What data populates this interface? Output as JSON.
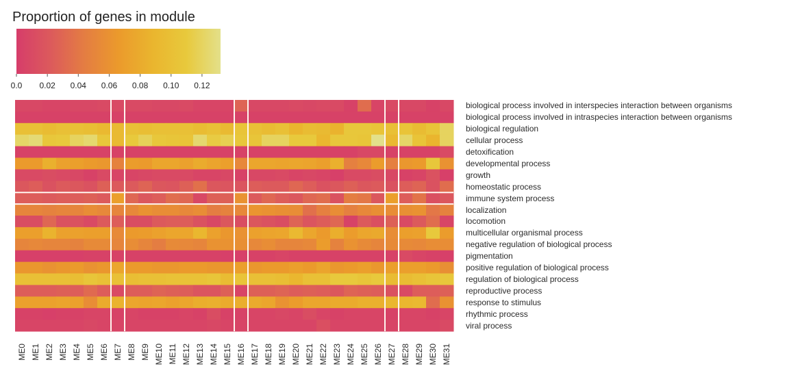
{
  "chart_data": {
    "type": "heatmap",
    "title": "",
    "colorbar": {
      "label": "Proportion of genes in module",
      "range": [
        0.0,
        0.132
      ],
      "ticks": [
        0.0,
        0.02,
        0.04,
        0.06,
        0.08,
        0.1,
        0.12
      ],
      "tick_labels": [
        "0.0",
        "0.02",
        "0.04",
        "0.06",
        "0.08",
        "0.10",
        "0.12"
      ],
      "colors": [
        "#d63d6a",
        "#dc5a5c",
        "#e47d42",
        "#eb9a2c",
        "#eab52e",
        "#e8c93c",
        "#e3e08a"
      ]
    },
    "columns": [
      "ME0",
      "ME1",
      "ME2",
      "ME3",
      "ME4",
      "ME5",
      "ME6",
      "ME7",
      "ME8",
      "ME9",
      "ME10",
      "ME11",
      "ME12",
      "ME13",
      "ME14",
      "ME15",
      "ME16",
      "ME17",
      "ME18",
      "ME19",
      "ME20",
      "ME21",
      "ME22",
      "ME23",
      "ME24",
      "ME25",
      "ME26",
      "ME27",
      "ME28",
      "ME29",
      "ME30",
      "ME31"
    ],
    "rows": [
      "biological process involved in interspecies interaction between organisms",
      "biological process involved in intraspecies interaction between organisms",
      "biological regulation",
      "cellular process",
      "detoxification",
      "developmental process",
      "growth",
      "homeostatic process",
      "immune system process",
      "localization",
      "locomotion",
      "multicellular organismal process",
      "negative regulation of biological process",
      "pigmentation",
      "positive regulation of biological process",
      "regulation of biological process",
      "reproductive process",
      "response to stimulus",
      "rhythmic process",
      "viral process"
    ],
    "highlight_columns": [
      "ME7",
      "ME16",
      "ME27"
    ],
    "highlight_rows": [
      "immune system process"
    ],
    "values": [
      [
        0.008,
        0.008,
        0.006,
        0.006,
        0.008,
        0.008,
        0.01,
        0.01,
        0.01,
        0.01,
        0.008,
        0.008,
        0.01,
        0.006,
        0.006,
        0.006,
        0.028,
        0.008,
        0.008,
        0.008,
        0.01,
        0.008,
        0.01,
        0.01,
        0.004,
        0.034,
        0.006,
        0.01,
        0.008,
        0.008,
        0.004,
        0.008
      ],
      [
        0.004,
        0.004,
        0.004,
        0.004,
        0.004,
        0.004,
        0.004,
        0.004,
        0.004,
        0.004,
        0.004,
        0.004,
        0.004,
        0.004,
        0.004,
        0.004,
        0.004,
        0.004,
        0.004,
        0.004,
        0.004,
        0.004,
        0.004,
        0.004,
        0.004,
        0.004,
        0.004,
        0.004,
        0.004,
        0.004,
        0.004,
        0.004
      ],
      [
        0.1,
        0.1,
        0.096,
        0.1,
        0.1,
        0.098,
        0.092,
        0.094,
        0.1,
        0.098,
        0.1,
        0.1,
        0.1,
        0.096,
        0.1,
        0.094,
        0.104,
        0.1,
        0.096,
        0.1,
        0.088,
        0.096,
        0.094,
        0.086,
        0.108,
        0.108,
        0.104,
        0.1,
        0.104,
        0.096,
        0.104,
        0.12
      ],
      [
        0.122,
        0.126,
        0.108,
        0.11,
        0.12,
        0.124,
        0.108,
        0.094,
        0.11,
        0.118,
        0.108,
        0.106,
        0.104,
        0.124,
        0.112,
        0.116,
        0.108,
        0.106,
        0.12,
        0.12,
        0.11,
        0.11,
        0.09,
        0.108,
        0.108,
        0.106,
        0.132,
        0.092,
        0.122,
        0.104,
        0.088,
        0.12
      ],
      [
        0.004,
        0.004,
        0.004,
        0.004,
        0.004,
        0.004,
        0.004,
        0.004,
        0.004,
        0.004,
        0.004,
        0.004,
        0.004,
        0.004,
        0.004,
        0.004,
        0.004,
        0.004,
        0.004,
        0.004,
        0.004,
        0.004,
        0.004,
        0.004,
        0.004,
        0.008,
        0.008,
        0.004,
        0.004,
        0.004,
        0.004,
        0.01
      ],
      [
        0.066,
        0.066,
        0.084,
        0.072,
        0.07,
        0.066,
        0.064,
        0.048,
        0.068,
        0.066,
        0.076,
        0.076,
        0.072,
        0.08,
        0.074,
        0.07,
        0.052,
        0.076,
        0.076,
        0.074,
        0.076,
        0.074,
        0.07,
        0.084,
        0.046,
        0.052,
        0.068,
        0.046,
        0.064,
        0.066,
        0.108,
        0.06
      ],
      [
        0.01,
        0.01,
        0.012,
        0.01,
        0.008,
        0.004,
        0.01,
        0.006,
        0.006,
        0.008,
        0.01,
        0.01,
        0.01,
        0.006,
        0.006,
        0.008,
        0.004,
        0.008,
        0.008,
        0.01,
        0.006,
        0.008,
        0.006,
        0.002,
        0.01,
        0.01,
        0.012,
        0.008,
        0.004,
        0.006,
        0.016,
        0.002
      ],
      [
        0.02,
        0.024,
        0.016,
        0.022,
        0.02,
        0.016,
        0.026,
        0.022,
        0.022,
        0.028,
        0.02,
        0.018,
        0.026,
        0.036,
        0.02,
        0.018,
        0.018,
        0.024,
        0.022,
        0.022,
        0.03,
        0.024,
        0.016,
        0.02,
        0.026,
        0.02,
        0.022,
        0.016,
        0.024,
        0.028,
        0.016,
        0.034
      ],
      [
        0.024,
        0.024,
        0.022,
        0.024,
        0.024,
        0.026,
        0.022,
        0.07,
        0.03,
        0.02,
        0.024,
        0.034,
        0.03,
        0.008,
        0.026,
        0.026,
        0.06,
        0.022,
        0.03,
        0.024,
        0.02,
        0.03,
        0.034,
        0.016,
        0.044,
        0.04,
        0.02,
        0.07,
        0.024,
        0.038,
        0.014,
        0.02
      ],
      [
        0.05,
        0.05,
        0.048,
        0.05,
        0.05,
        0.056,
        0.052,
        0.05,
        0.052,
        0.06,
        0.056,
        0.056,
        0.052,
        0.056,
        0.044,
        0.048,
        0.052,
        0.062,
        0.06,
        0.058,
        0.056,
        0.036,
        0.046,
        0.056,
        0.046,
        0.052,
        0.058,
        0.056,
        0.058,
        0.06,
        0.04,
        0.048
      ],
      [
        0.012,
        0.012,
        0.03,
        0.016,
        0.016,
        0.01,
        0.022,
        0.024,
        0.012,
        0.012,
        0.022,
        0.024,
        0.024,
        0.016,
        0.008,
        0.02,
        0.012,
        0.02,
        0.016,
        0.012,
        0.028,
        0.018,
        0.024,
        0.03,
        0.004,
        0.022,
        0.014,
        0.026,
        0.01,
        0.022,
        0.034,
        0.006
      ],
      [
        0.07,
        0.07,
        0.086,
        0.072,
        0.072,
        0.07,
        0.07,
        0.054,
        0.066,
        0.068,
        0.072,
        0.076,
        0.076,
        0.09,
        0.072,
        0.064,
        0.06,
        0.072,
        0.074,
        0.076,
        0.092,
        0.076,
        0.066,
        0.082,
        0.068,
        0.076,
        0.078,
        0.056,
        0.07,
        0.072,
        0.11,
        0.068
      ],
      [
        0.05,
        0.052,
        0.05,
        0.05,
        0.048,
        0.054,
        0.054,
        0.05,
        0.056,
        0.05,
        0.044,
        0.054,
        0.052,
        0.05,
        0.06,
        0.06,
        0.058,
        0.052,
        0.056,
        0.05,
        0.05,
        0.052,
        0.068,
        0.048,
        0.06,
        0.054,
        0.05,
        0.054,
        0.054,
        0.052,
        0.056,
        0.056
      ],
      [
        0.002,
        0.002,
        0.002,
        0.002,
        0.002,
        0.004,
        0.004,
        0.004,
        0.004,
        0.004,
        0.004,
        0.004,
        0.004,
        0.004,
        0.004,
        0.002,
        0.002,
        0.004,
        0.004,
        0.006,
        0.004,
        0.004,
        0.004,
        0.004,
        0.004,
        0.004,
        0.004,
        0.004,
        0.01,
        0.006,
        0.004,
        0.002
      ],
      [
        0.064,
        0.064,
        0.06,
        0.064,
        0.066,
        0.06,
        0.064,
        0.076,
        0.066,
        0.066,
        0.064,
        0.064,
        0.066,
        0.066,
        0.064,
        0.064,
        0.07,
        0.064,
        0.066,
        0.066,
        0.07,
        0.066,
        0.074,
        0.064,
        0.066,
        0.07,
        0.064,
        0.07,
        0.07,
        0.07,
        0.066,
        0.058
      ],
      [
        0.1,
        0.1,
        0.1,
        0.1,
        0.098,
        0.106,
        0.1,
        0.1,
        0.098,
        0.1,
        0.1,
        0.102,
        0.102,
        0.102,
        0.106,
        0.096,
        0.104,
        0.1,
        0.1,
        0.098,
        0.09,
        0.1,
        0.1,
        0.11,
        0.11,
        0.106,
        0.11,
        0.096,
        0.096,
        0.1,
        0.106,
        0.108
      ],
      [
        0.024,
        0.024,
        0.024,
        0.026,
        0.024,
        0.032,
        0.024,
        0.01,
        0.024,
        0.024,
        0.028,
        0.026,
        0.024,
        0.018,
        0.018,
        0.026,
        0.006,
        0.026,
        0.026,
        0.028,
        0.024,
        0.026,
        0.024,
        0.02,
        0.028,
        0.026,
        0.024,
        0.016,
        0.01,
        0.024,
        0.024,
        0.026
      ],
      [
        0.072,
        0.072,
        0.072,
        0.074,
        0.072,
        0.056,
        0.08,
        0.086,
        0.076,
        0.074,
        0.076,
        0.072,
        0.076,
        0.082,
        0.084,
        0.08,
        0.082,
        0.08,
        0.076,
        0.06,
        0.068,
        0.076,
        0.076,
        0.08,
        0.08,
        0.084,
        0.084,
        0.09,
        0.09,
        0.092,
        0.034,
        0.06
      ],
      [
        0.004,
        0.004,
        0.002,
        0.004,
        0.004,
        0.006,
        0.006,
        0.004,
        0.006,
        0.004,
        0.004,
        0.004,
        0.006,
        0.004,
        0.012,
        0.004,
        0.004,
        0.006,
        0.006,
        0.008,
        0.006,
        0.012,
        0.006,
        0.004,
        0.006,
        0.006,
        0.006,
        0.004,
        0.006,
        0.006,
        0.004,
        0.006
      ],
      [
        0.006,
        0.006,
        0.006,
        0.006,
        0.006,
        0.008,
        0.006,
        0.006,
        0.006,
        0.006,
        0.006,
        0.006,
        0.006,
        0.006,
        0.008,
        0.006,
        0.006,
        0.006,
        0.006,
        0.006,
        0.006,
        0.006,
        0.014,
        0.006,
        0.006,
        0.006,
        0.006,
        0.006,
        0.006,
        0.006,
        0.006,
        0.01
      ]
    ]
  }
}
